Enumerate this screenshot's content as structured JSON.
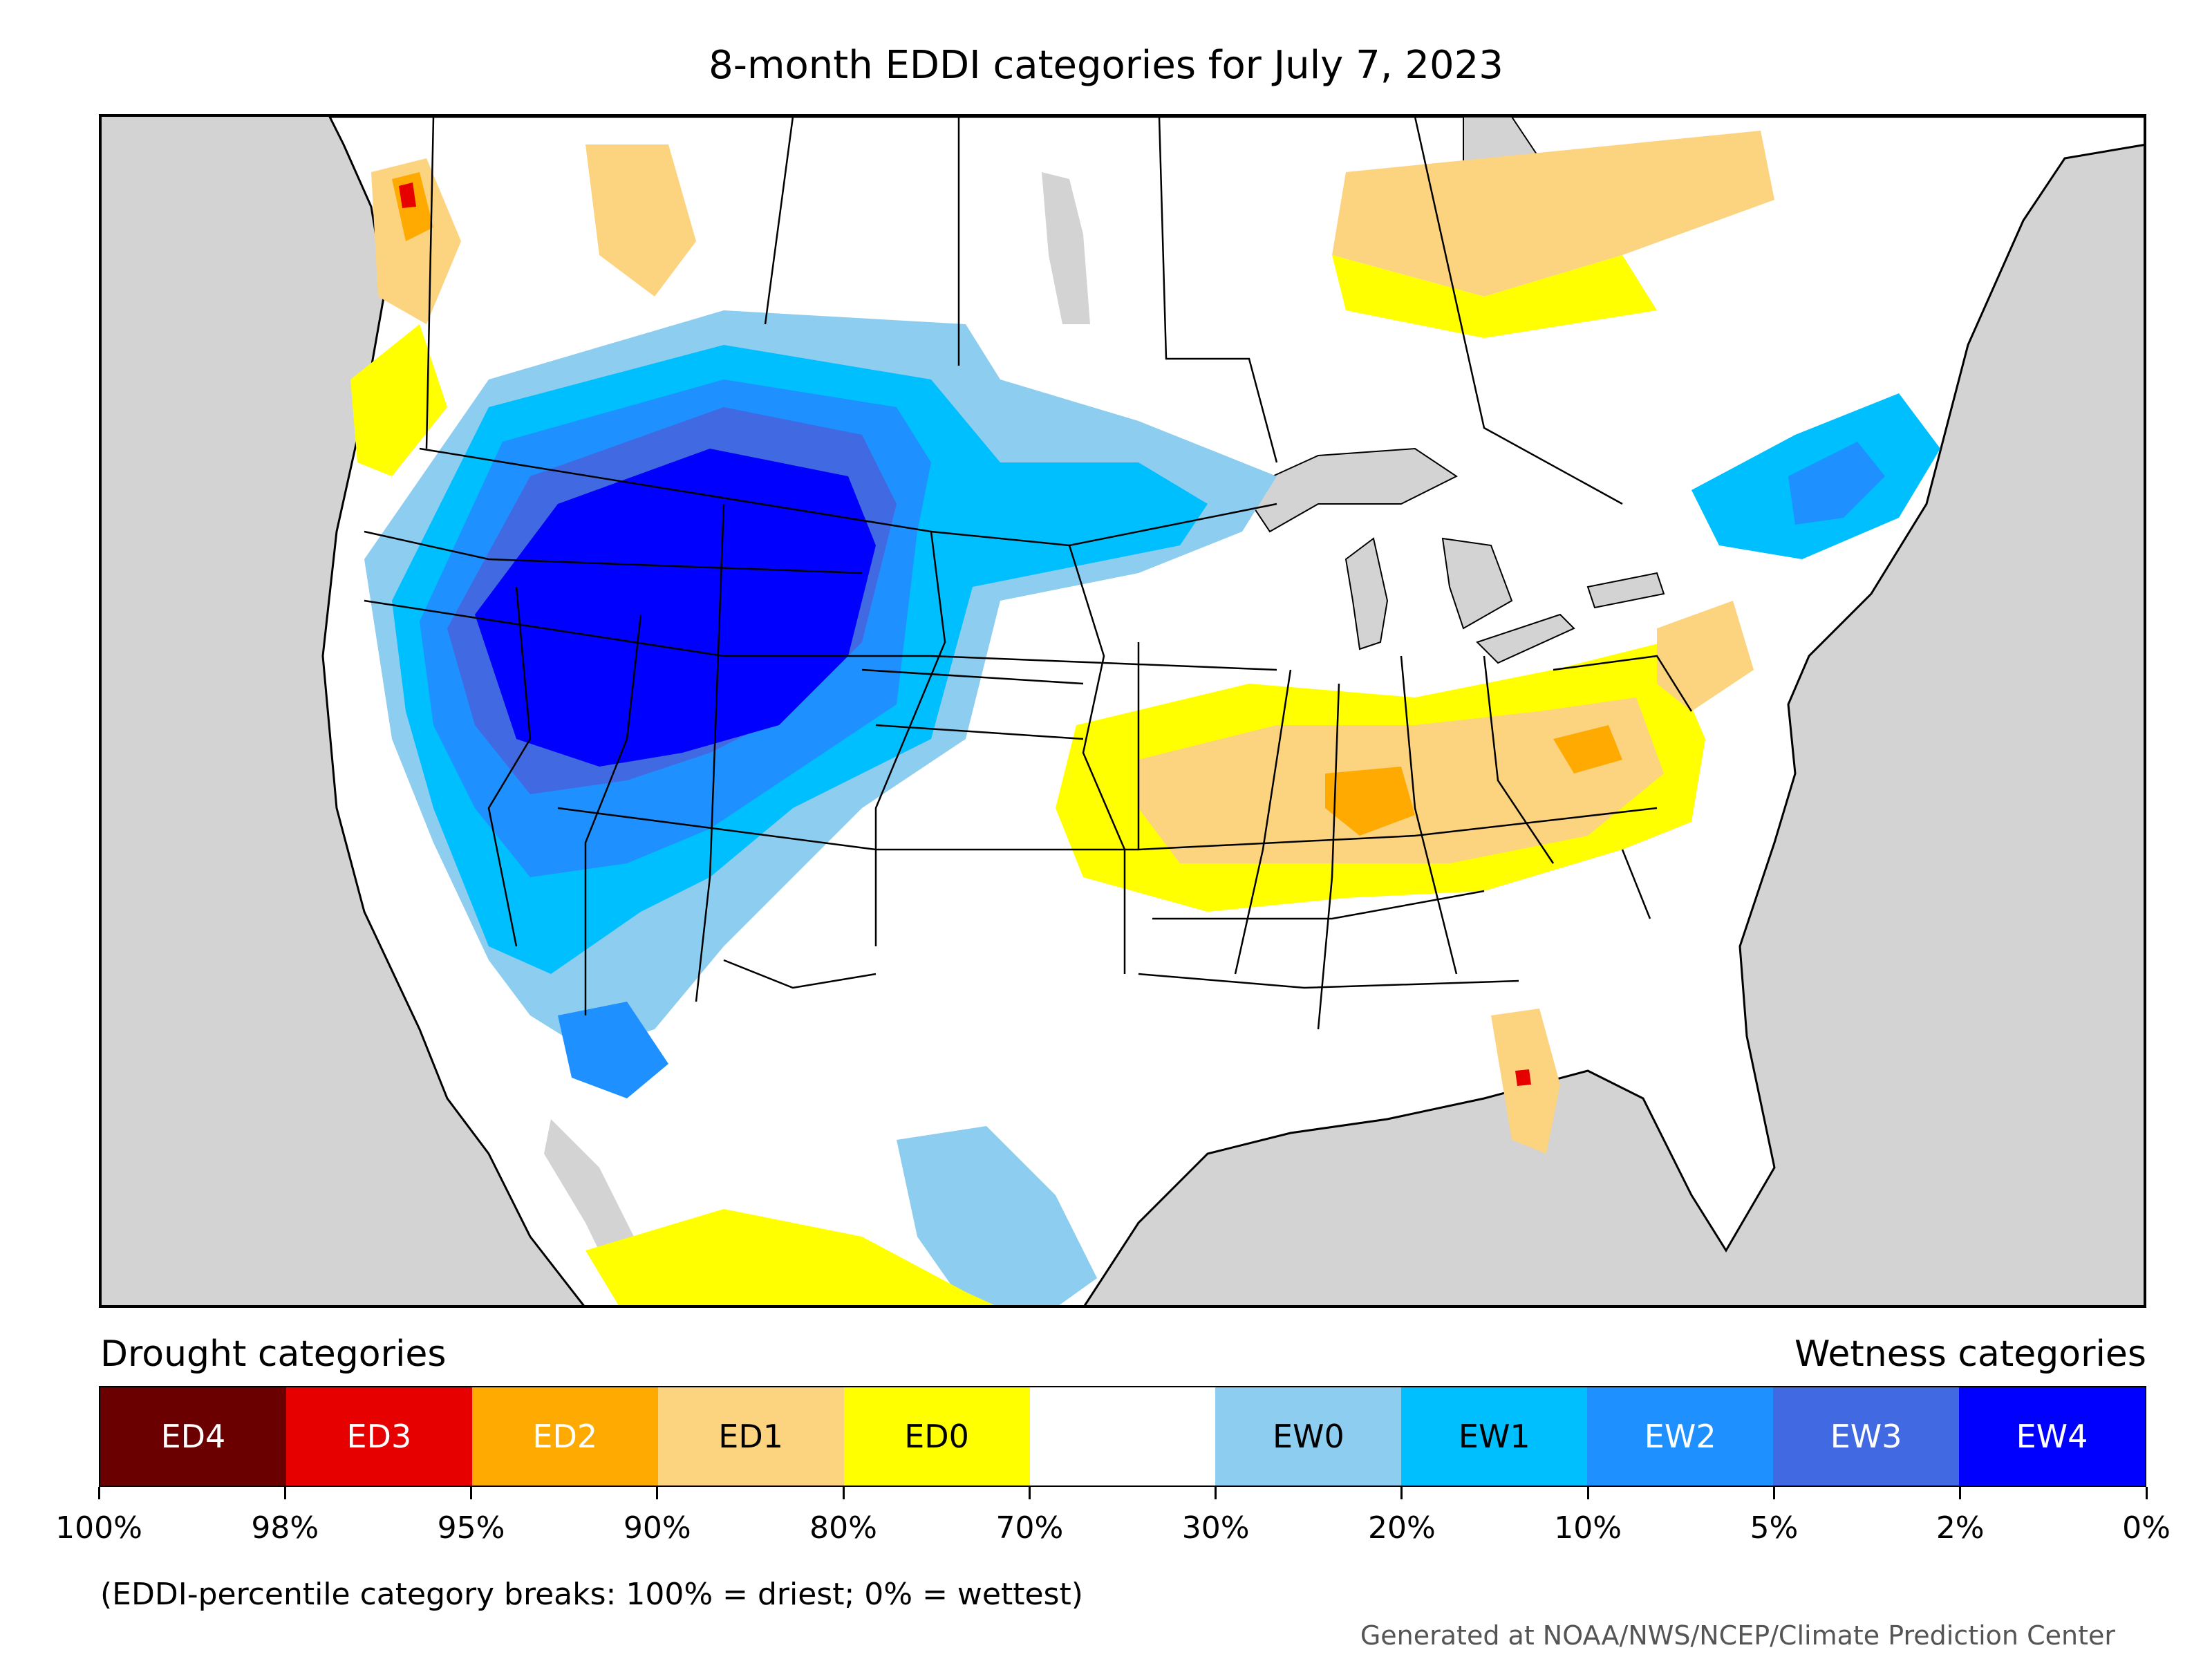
{
  "title": "8-month EDDI categories for July 7, 2023",
  "legend": {
    "drought_heading": "Drought categories",
    "wetness_heading": "Wetness categories",
    "categories": [
      {
        "label": "ED4",
        "color": "#6b0000",
        "text_color": "#ffffff"
      },
      {
        "label": "ED3",
        "color": "#e60000",
        "text_color": "#ffffff"
      },
      {
        "label": "ED2",
        "color": "#ffaa00",
        "text_color": "#ffffff"
      },
      {
        "label": "ED1",
        "color": "#fcd37f",
        "text_color": "#000000"
      },
      {
        "label": "ED0",
        "color": "#ffff00",
        "text_color": "#000000"
      },
      {
        "label": "",
        "color": "#ffffff",
        "text_color": "#000000"
      },
      {
        "label": "EW0",
        "color": "#8ccdf0",
        "text_color": "#000000"
      },
      {
        "label": "EW1",
        "color": "#00bfff",
        "text_color": "#000000"
      },
      {
        "label": "EW2",
        "color": "#1e90ff",
        "text_color": "#ffffff"
      },
      {
        "label": "EW3",
        "color": "#4169e1",
        "text_color": "#ffffff"
      },
      {
        "label": "EW4",
        "color": "#0000ff",
        "text_color": "#ffffff"
      }
    ],
    "tick_labels": [
      "100%",
      "98%",
      "95%",
      "90%",
      "80%",
      "70%",
      "30%",
      "20%",
      "10%",
      "5%",
      "2%",
      "0%"
    ]
  },
  "note": "(EDDI-percentile category breaks: 100% = driest; 0% = wettest)",
  "credit": "Generated at NOAA/NWS/NCEP/Climate Prediction Center",
  "map_colors": {
    "ocean": "#d3d3d3",
    "land": "#ffffff",
    "lakes": "#d3d3d3",
    "borders": "#000000"
  }
}
